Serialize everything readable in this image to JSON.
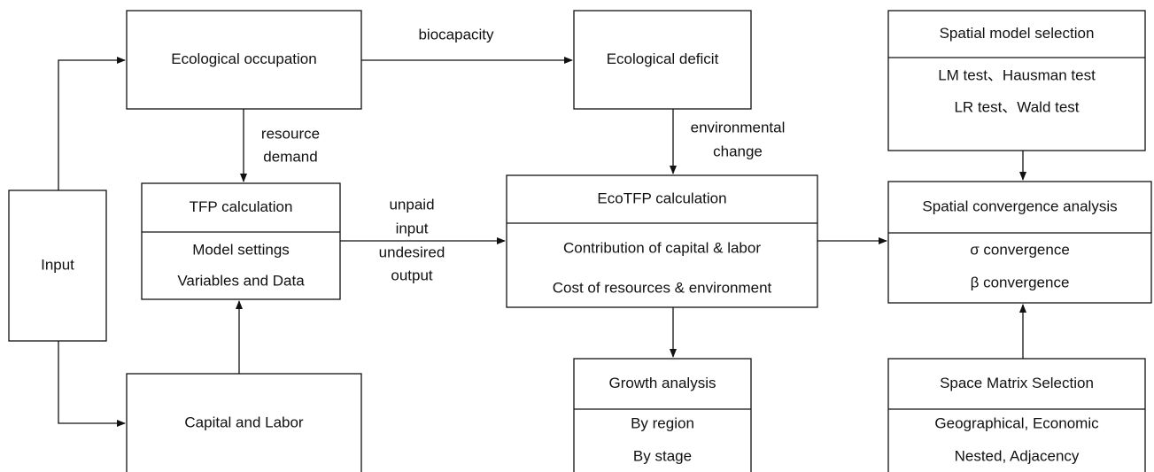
{
  "nodes": [
    {
      "title": "Input"
    },
    {
      "title": "Ecological occupation"
    },
    {
      "title": "Ecological deficit"
    },
    {
      "title": "Spatial model selection",
      "items": [
        "LM test、Hausman test",
        "LR test、Wald test"
      ]
    },
    {
      "title": "TFP calculation",
      "items": [
        "Model settings",
        "Variables and Data"
      ]
    },
    {
      "title": "EcoTFP calculation",
      "items": [
        "Contribution of capital & labor",
        "Cost of resources & environment"
      ]
    },
    {
      "title": "Spatial convergence analysis",
      "items": [
        "σ convergence",
        "β convergence"
      ]
    },
    {
      "title": "Capital and Labor"
    },
    {
      "title": "Growth analysis",
      "items": [
        "By region",
        "By stage"
      ]
    },
    {
      "title": "Space Matrix Selection",
      "items": [
        "Geographical, Economic",
        "Nested, Adjacency"
      ]
    }
  ],
  "edge_labels": [
    {
      "lines": [
        "biocapacity"
      ]
    },
    {
      "lines": [
        "resource",
        "demand"
      ]
    },
    {
      "lines": [
        "environmental",
        "change"
      ]
    },
    {
      "lines": [
        "unpaid",
        "input",
        "undesired",
        "output"
      ]
    }
  ]
}
